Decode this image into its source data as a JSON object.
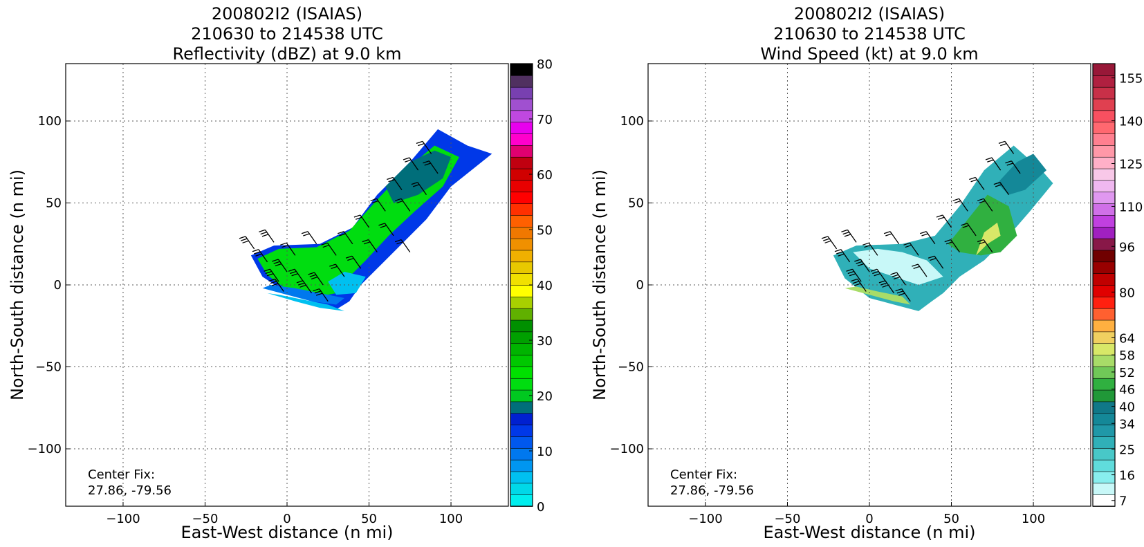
{
  "chart_data": [
    {
      "type": "heatmap",
      "title_lines": [
        "200802I2 (ISAIAS)",
        "210630 to 214538 UTC",
        "Reflectivity (dBZ) at 9.0 km"
      ],
      "xlabel": "East-West distance (n mi)",
      "ylabel": "North-South distance (n mi)",
      "xlim": [
        -135,
        135
      ],
      "ylim": [
        -135,
        135
      ],
      "xticks": [
        -100,
        -50,
        0,
        50,
        100
      ],
      "yticks": [
        -100,
        -50,
        0,
        50,
        100
      ],
      "xtick_labels": [
        "−100",
        "−50",
        "0",
        "50",
        "100"
      ],
      "ytick_labels": [
        "−100",
        "−50",
        "0",
        "50",
        "100"
      ],
      "grid": true,
      "center_fix_label": "Center Fix:",
      "center_fix_value": "27.86, -79.56",
      "colorbar": {
        "min": 0,
        "max": 80,
        "tick_values": [
          0,
          10,
          20,
          30,
          40,
          50,
          60,
          70,
          80
        ],
        "tick_labels": [
          "0",
          "10",
          "20",
          "30",
          "40",
          "50",
          "60",
          "70",
          "80"
        ],
        "colors": [
          "#00eeee",
          "#00d8e8",
          "#00c0f0",
          "#0096f0",
          "#0078ee",
          "#0058ee",
          "#0038e8",
          "#0020d0",
          "#006e7a",
          "#00c820",
          "#00dd10",
          "#00e000",
          "#00c800",
          "#00b400",
          "#00a000",
          "#009000",
          "#60b000",
          "#a8d000",
          "#ffff00",
          "#f0e000",
          "#e8c800",
          "#f0b000",
          "#f09000",
          "#f07800",
          "#ff6000",
          "#ff3000",
          "#ff0000",
          "#e80000",
          "#d00000",
          "#c00010",
          "#e00070",
          "#ff00cc",
          "#e800ee",
          "#c048e0",
          "#a050d0",
          "#7840b0",
          "#503060",
          "#000000"
        ]
      },
      "field": [
        {
          "x": [
            -22,
            -8,
            20,
            40,
            55,
            75,
            92,
            110,
            125,
            100,
            85,
            70,
            55,
            45,
            38,
            30,
            15,
            0,
            -15
          ],
          "y": [
            18,
            24,
            25,
            35,
            55,
            75,
            95,
            85,
            80,
            60,
            40,
            25,
            10,
            0,
            -10,
            -15,
            -10,
            -5,
            5
          ],
          "color": "#0038e8"
        },
        {
          "x": [
            -18,
            -5,
            18,
            38,
            55,
            72,
            90,
            105,
            95,
            78,
            62,
            48,
            38,
            30,
            15,
            0,
            -12
          ],
          "y": [
            16,
            22,
            23,
            33,
            52,
            70,
            85,
            78,
            60,
            45,
            30,
            15,
            5,
            -5,
            -8,
            -3,
            6
          ],
          "color": "#00dd10"
        },
        {
          "x": [
            60,
            75,
            90,
            100,
            95,
            80,
            65
          ],
          "y": [
            60,
            75,
            82,
            78,
            65,
            55,
            50
          ],
          "color": "#006e7a"
        },
        {
          "x": [
            25,
            35,
            48,
            42,
            30
          ],
          "y": [
            2,
            8,
            5,
            -5,
            -6
          ],
          "color": "#00c0f0"
        },
        {
          "x": [
            -15,
            0,
            15,
            30,
            35,
            20,
            5,
            -10
          ],
          "y": [
            -2,
            -6,
            -10,
            -12,
            -8,
            -5,
            -2,
            0
          ],
          "color": "#0078ee"
        },
        {
          "x": [
            -12,
            5,
            20,
            35,
            25,
            10,
            -5
          ],
          "y": [
            -5,
            -10,
            -14,
            -16,
            -12,
            -9,
            -6
          ],
          "color": "#00c0f0"
        }
      ],
      "barbs": [
        {
          "x": -20,
          "y": 22,
          "speed": 30
        },
        {
          "x": -8,
          "y": 26,
          "speed": 30
        },
        {
          "x": 5,
          "y": 18,
          "speed": 20
        },
        {
          "x": -12,
          "y": 14,
          "speed": 30
        },
        {
          "x": 0,
          "y": 8,
          "speed": 30
        },
        {
          "x": -5,
          "y": 2,
          "speed": 30
        },
        {
          "x": 10,
          "y": 2,
          "speed": 30
        },
        {
          "x": 22,
          "y": 0,
          "speed": 25
        },
        {
          "x": 35,
          "y": 5,
          "speed": 20
        },
        {
          "x": 45,
          "y": 10,
          "speed": 20
        },
        {
          "x": 30,
          "y": 18,
          "speed": 20
        },
        {
          "x": 18,
          "y": 25,
          "speed": 20
        },
        {
          "x": 40,
          "y": 25,
          "speed": 20
        },
        {
          "x": 55,
          "y": 20,
          "speed": 20
        },
        {
          "x": 50,
          "y": 35,
          "speed": 20
        },
        {
          "x": 65,
          "y": 30,
          "speed": 20
        },
        {
          "x": 60,
          "y": 45,
          "speed": 20
        },
        {
          "x": 75,
          "y": 45,
          "speed": 20
        },
        {
          "x": 70,
          "y": 58,
          "speed": 20
        },
        {
          "x": 85,
          "y": 55,
          "speed": 20
        },
        {
          "x": 80,
          "y": 70,
          "speed": 20
        },
        {
          "x": 92,
          "y": 68,
          "speed": 20
        },
        {
          "x": 88,
          "y": 80,
          "speed": 20
        },
        {
          "x": 15,
          "y": -5,
          "speed": 30
        },
        {
          "x": 25,
          "y": -10,
          "speed": 25
        },
        {
          "x": -2,
          "y": -4,
          "speed": 30
        },
        {
          "x": 75,
          "y": 20,
          "speed": 20
        }
      ]
    },
    {
      "type": "heatmap",
      "title_lines": [
        "200802I2 (ISAIAS)",
        "210630 to 214538 UTC",
        "Wind Speed (kt) at 9.0 km"
      ],
      "xlabel": "East-West distance (n mi)",
      "ylabel": "North-South distance (n mi)",
      "xlim": [
        -135,
        135
      ],
      "ylim": [
        -135,
        135
      ],
      "xticks": [
        -100,
        -50,
        0,
        50,
        100
      ],
      "yticks": [
        -100,
        -50,
        0,
        50,
        100
      ],
      "xtick_labels": [
        "−100",
        "−50",
        "0",
        "50",
        "100"
      ],
      "ytick_labels": [
        "−100",
        "−50",
        "0",
        "50",
        "100"
      ],
      "grid": true,
      "center_fix_label": "Center Fix:",
      "center_fix_value": "27.86, -79.56",
      "colorbar": {
        "min": 5,
        "max": 160,
        "tick_values": [
          7,
          16,
          25,
          34,
          40,
          46,
          52,
          58,
          64,
          80,
          96,
          110,
          125,
          140,
          155
        ],
        "tick_labels": [
          "7",
          "16",
          "25",
          "34",
          "40",
          "46",
          "52",
          "58",
          "64",
          "80",
          "96",
          "110",
          "125",
          "140",
          "155"
        ],
        "colors": [
          "#ffffff",
          "#c8f8f8",
          "#88eeee",
          "#60dcdc",
          "#48c8c8",
          "#30b0b8",
          "#2098a8",
          "#148898",
          "#107888",
          "#209838",
          "#30b040",
          "#70c858",
          "#a8dc68",
          "#d8e868",
          "#f0d060",
          "#ffb040",
          "#ff6030",
          "#ff2010",
          "#e00000",
          "#c00000",
          "#980000",
          "#700000",
          "#881848",
          "#a020c0",
          "#c040e0",
          "#d070e8",
          "#e098f0",
          "#f0b8f0",
          "#f8c8e8",
          "#ffb0c8",
          "#ff98a8",
          "#ff8090",
          "#ff6870",
          "#f85060",
          "#e04050",
          "#c83048",
          "#b02040",
          "#981838"
        ]
      },
      "field": [
        {
          "x": [
            -22,
            -8,
            20,
            40,
            55,
            70,
            88,
            105,
            112,
            98,
            85,
            70,
            55,
            45,
            38,
            30,
            15,
            0,
            -15
          ],
          "y": [
            18,
            24,
            25,
            30,
            48,
            70,
            85,
            70,
            62,
            45,
            30,
            15,
            5,
            -5,
            -10,
            -16,
            -12,
            -8,
            4
          ],
          "color": "#30b0b8"
        },
        {
          "x": [
            -10,
            5,
            20,
            35,
            45,
            30,
            15,
            0
          ],
          "y": [
            20,
            22,
            20,
            15,
            5,
            0,
            5,
            10
          ],
          "color": "#c8f8f8"
        },
        {
          "x": [
            -15,
            0,
            15,
            25,
            20,
            5,
            -8
          ],
          "y": [
            -2,
            -6,
            -10,
            -12,
            -7,
            -4,
            -1
          ],
          "color": "#a8dc68"
        },
        {
          "x": [
            48,
            60,
            72,
            85,
            90,
            80,
            68,
            55
          ],
          "y": [
            25,
            40,
            55,
            48,
            30,
            20,
            18,
            20
          ],
          "color": "#30b040"
        },
        {
          "x": [
            65,
            72,
            80,
            78,
            70
          ],
          "y": [
            18,
            25,
            30,
            38,
            32
          ],
          "color": "#d8e868"
        },
        {
          "x": [
            78,
            90,
            100,
            108,
            95,
            85
          ],
          "y": [
            62,
            75,
            80,
            70,
            58,
            55
          ],
          "color": "#148898"
        }
      ],
      "barbs": [
        {
          "x": -20,
          "y": 22,
          "speed": 30
        },
        {
          "x": -8,
          "y": 26,
          "speed": 30
        },
        {
          "x": 5,
          "y": 18,
          "speed": 20
        },
        {
          "x": -12,
          "y": 14,
          "speed": 30
        },
        {
          "x": 0,
          "y": 8,
          "speed": 30
        },
        {
          "x": -5,
          "y": 2,
          "speed": 30
        },
        {
          "x": 10,
          "y": 2,
          "speed": 30
        },
        {
          "x": 22,
          "y": 0,
          "speed": 25
        },
        {
          "x": 35,
          "y": 5,
          "speed": 20
        },
        {
          "x": 45,
          "y": 10,
          "speed": 20
        },
        {
          "x": 30,
          "y": 18,
          "speed": 20
        },
        {
          "x": 18,
          "y": 25,
          "speed": 20
        },
        {
          "x": 40,
          "y": 25,
          "speed": 20
        },
        {
          "x": 55,
          "y": 20,
          "speed": 20
        },
        {
          "x": 50,
          "y": 35,
          "speed": 20
        },
        {
          "x": 65,
          "y": 30,
          "speed": 20
        },
        {
          "x": 60,
          "y": 45,
          "speed": 20
        },
        {
          "x": 75,
          "y": 45,
          "speed": 20
        },
        {
          "x": 70,
          "y": 58,
          "speed": 20
        },
        {
          "x": 85,
          "y": 55,
          "speed": 20
        },
        {
          "x": 80,
          "y": 70,
          "speed": 20
        },
        {
          "x": 92,
          "y": 68,
          "speed": 20
        },
        {
          "x": 88,
          "y": 80,
          "speed": 20
        },
        {
          "x": 15,
          "y": -5,
          "speed": 30
        },
        {
          "x": 25,
          "y": -10,
          "speed": 25
        },
        {
          "x": -2,
          "y": -4,
          "speed": 30
        },
        {
          "x": 75,
          "y": 20,
          "speed": 20
        }
      ]
    }
  ]
}
